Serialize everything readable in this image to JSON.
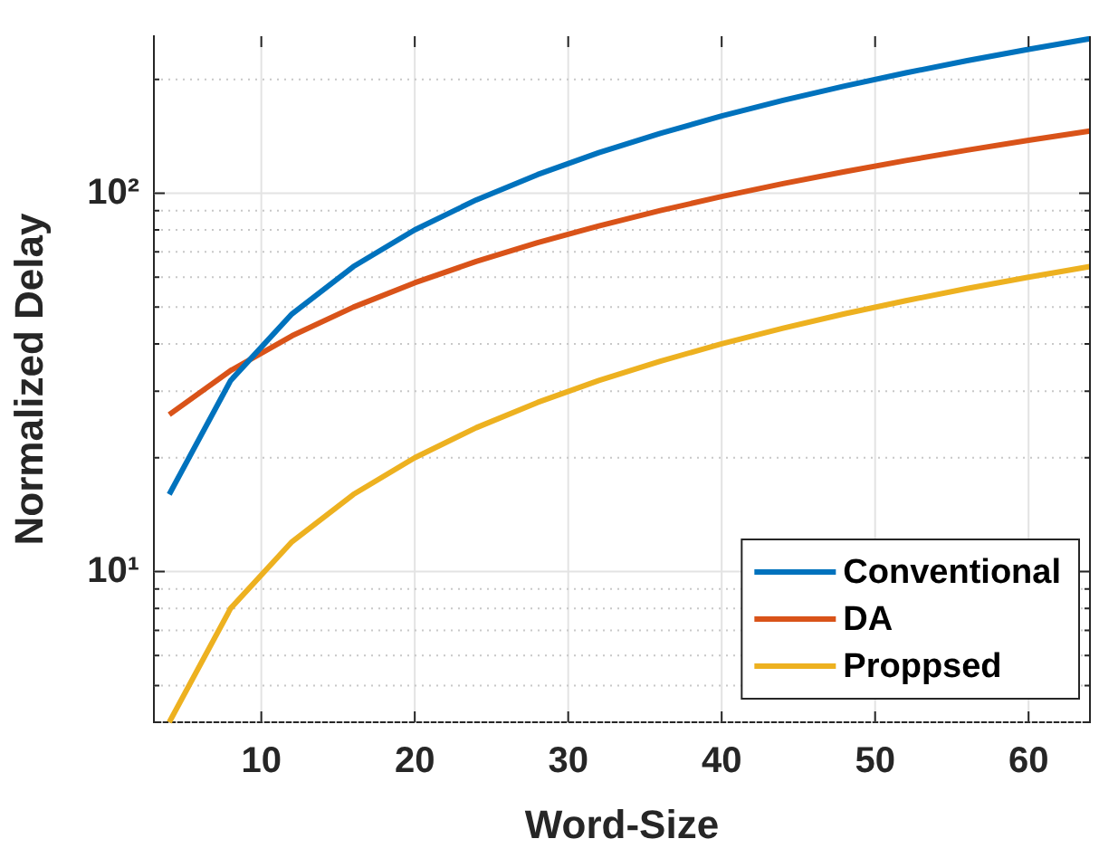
{
  "chart_data": {
    "type": "line",
    "xlabel": "Word-Size",
    "ylabel": "Normalized Delay",
    "x": [
      4,
      8,
      12,
      16,
      20,
      24,
      28,
      32,
      36,
      40,
      44,
      48,
      52,
      56,
      60,
      64
    ],
    "series": [
      {
        "name": "Conventional",
        "color": "#0072bd",
        "values": [
          16,
          32,
          48,
          64,
          80,
          96,
          112,
          128,
          144,
          160,
          176,
          192,
          208,
          224,
          240,
          256
        ]
      },
      {
        "name": "DA",
        "color": "#d95319",
        "values": [
          26,
          34,
          42,
          50,
          58,
          66,
          74,
          82,
          90,
          98,
          106,
          114,
          122,
          130,
          138,
          146
        ]
      },
      {
        "name": "Proppsed",
        "color": "#edb120",
        "values": [
          4,
          8,
          12,
          16,
          20,
          24,
          28,
          32,
          36,
          40,
          44,
          48,
          52,
          56,
          60,
          64
        ]
      }
    ],
    "log": "y",
    "xlim": [
      3,
      64
    ],
    "ylim": [
      4,
      260
    ],
    "xticks": [
      10,
      20,
      30,
      40,
      50,
      60
    ],
    "yticks": [
      {
        "value": 4,
        "label": null
      },
      {
        "value": 5,
        "label": null
      },
      {
        "value": 6,
        "label": null
      },
      {
        "value": 7,
        "label": null
      },
      {
        "value": 8,
        "label": null
      },
      {
        "value": 9,
        "label": null
      },
      {
        "value": 10,
        "label": "10¹"
      },
      {
        "value": 20,
        "label": null
      },
      {
        "value": 30,
        "label": null
      },
      {
        "value": 40,
        "label": null
      },
      {
        "value": 50,
        "label": null
      },
      {
        "value": 60,
        "label": null
      },
      {
        "value": 70,
        "label": null
      },
      {
        "value": 80,
        "label": null
      },
      {
        "value": 90,
        "label": null
      },
      {
        "value": 100,
        "label": "10²"
      },
      {
        "value": 200,
        "label": null
      }
    ],
    "grid": true,
    "legend": "bottom right",
    "marker": "none",
    "line_style": "solid"
  }
}
